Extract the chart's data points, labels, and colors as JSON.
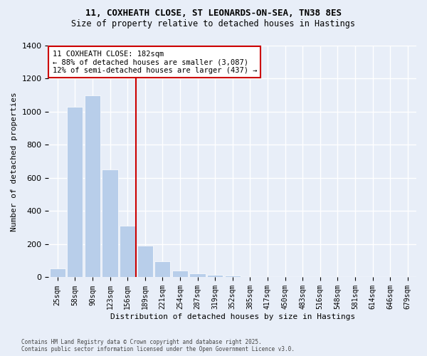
{
  "title_line1": "11, COXHEATH CLOSE, ST LEONARDS-ON-SEA, TN38 8ES",
  "title_line2": "Size of property relative to detached houses in Hastings",
  "xlabel": "Distribution of detached houses by size in Hastings",
  "ylabel": "Number of detached properties",
  "categories": [
    "25sqm",
    "58sqm",
    "90sqm",
    "123sqm",
    "156sqm",
    "189sqm",
    "221sqm",
    "254sqm",
    "287sqm",
    "319sqm",
    "352sqm",
    "385sqm",
    "417sqm",
    "450sqm",
    "483sqm",
    "516sqm",
    "548sqm",
    "581sqm",
    "614sqm",
    "646sqm",
    "679sqm"
  ],
  "values": [
    55,
    1030,
    1100,
    650,
    310,
    190,
    95,
    40,
    25,
    15,
    10,
    0,
    0,
    0,
    0,
    0,
    0,
    0,
    0,
    0,
    0
  ],
  "bar_color": "#b8ceea",
  "bar_edgecolor": "#b8ceea",
  "vline_color": "#cc0000",
  "vline_pos": 4.5,
  "annotation_text1": "11 COXHEATH CLOSE: 182sqm",
  "annotation_text2": "← 88% of detached houses are smaller (3,087)",
  "annotation_text3": "12% of semi-detached houses are larger (437) →",
  "annotation_box_edgecolor": "#cc0000",
  "background_color": "#e8eef8",
  "grid_color": "#ffffff",
  "ylim": [
    0,
    1400
  ],
  "yticks": [
    0,
    200,
    400,
    600,
    800,
    1000,
    1200,
    1400
  ],
  "footer_line1": "Contains HM Land Registry data © Crown copyright and database right 2025.",
  "footer_line2": "Contains public sector information licensed under the Open Government Licence v3.0."
}
